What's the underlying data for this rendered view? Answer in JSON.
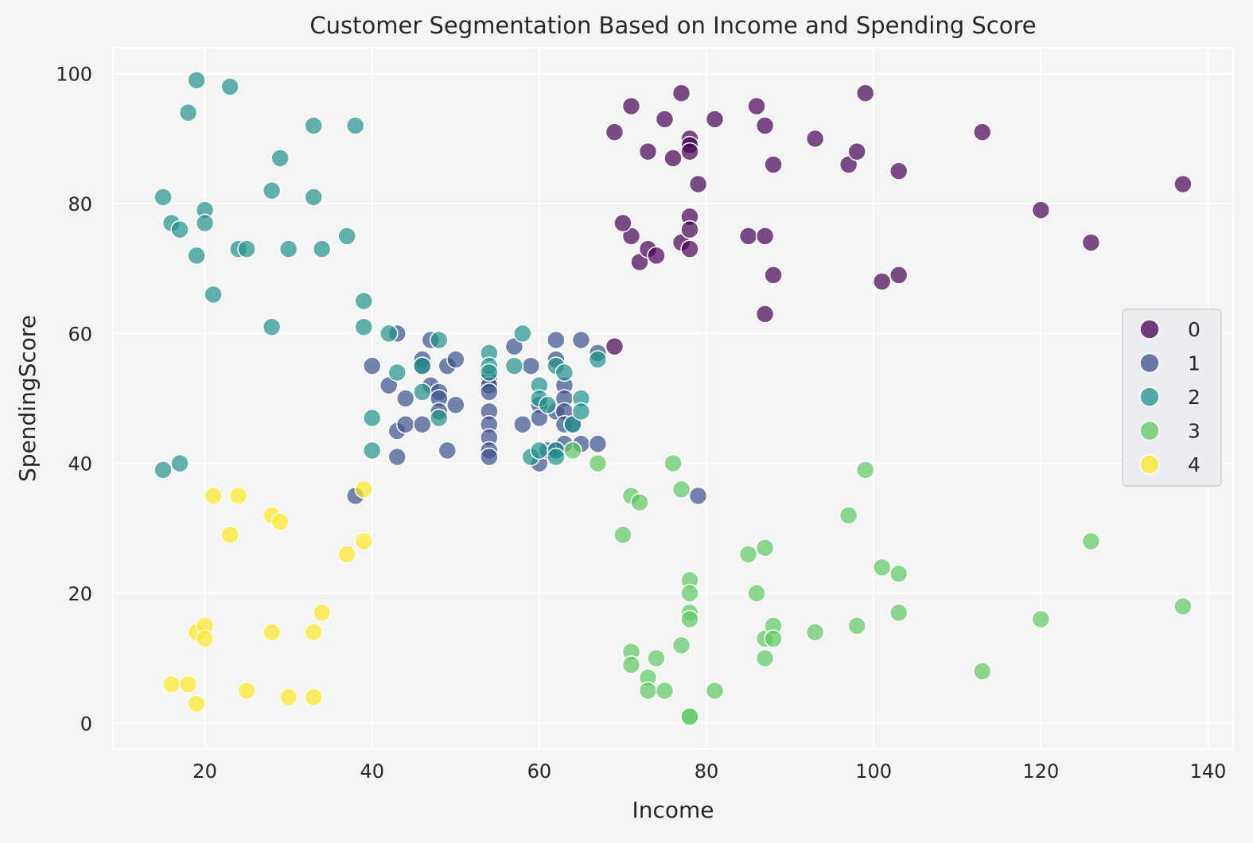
{
  "chart_data": {
    "type": "scatter",
    "title": "Customer Segmentation Based on Income and Spending Score",
    "xlabel": "Income",
    "ylabel": "SpendingScore",
    "xlim": [
      9,
      143
    ],
    "ylim": [
      -4,
      104
    ],
    "xticks": [
      20,
      40,
      60,
      80,
      100,
      120,
      140
    ],
    "yticks": [
      0,
      20,
      40,
      60,
      80,
      100
    ],
    "grid": true,
    "legend": {
      "position": "center-right",
      "entries": [
        "0",
        "1",
        "2",
        "3",
        "4"
      ]
    },
    "colors": [
      "#440154",
      "#3b528b",
      "#21918c",
      "#5ec962",
      "#fde725"
    ],
    "series": [
      {
        "name": "0",
        "points": [
          [
            69,
            91
          ],
          [
            71,
            95
          ],
          [
            71,
            75
          ],
          [
            70,
            77
          ],
          [
            72,
            71
          ],
          [
            73,
            88
          ],
          [
            73,
            73
          ],
          [
            74,
            72
          ],
          [
            75,
            93
          ],
          [
            76,
            87
          ],
          [
            77,
            97
          ],
          [
            77,
            74
          ],
          [
            78,
            90
          ],
          [
            78,
            89
          ],
          [
            78,
            88
          ],
          [
            78,
            78
          ],
          [
            78,
            76
          ],
          [
            78,
            73
          ],
          [
            79,
            83
          ],
          [
            81,
            93
          ],
          [
            85,
            75
          ],
          [
            86,
            95
          ],
          [
            87,
            92
          ],
          [
            87,
            75
          ],
          [
            87,
            63
          ],
          [
            88,
            86
          ],
          [
            88,
            69
          ],
          [
            93,
            90
          ],
          [
            97,
            86
          ],
          [
            98,
            88
          ],
          [
            99,
            97
          ],
          [
            101,
            68
          ],
          [
            103,
            85
          ],
          [
            103,
            69
          ],
          [
            113,
            91
          ],
          [
            120,
            79
          ],
          [
            126,
            74
          ],
          [
            137,
            83
          ],
          [
            69,
            58
          ]
        ]
      },
      {
        "name": "1",
        "points": [
          [
            38,
            35
          ],
          [
            40,
            55
          ],
          [
            42,
            52
          ],
          [
            43,
            60
          ],
          [
            43,
            45
          ],
          [
            43,
            41
          ],
          [
            44,
            50
          ],
          [
            44,
            46
          ],
          [
            46,
            56
          ],
          [
            46,
            55
          ],
          [
            46,
            46
          ],
          [
            47,
            59
          ],
          [
            47,
            52
          ],
          [
            48,
            51
          ],
          [
            48,
            50
          ],
          [
            48,
            48
          ],
          [
            49,
            55
          ],
          [
            49,
            42
          ],
          [
            50,
            56
          ],
          [
            50,
            49
          ],
          [
            54,
            53
          ],
          [
            54,
            52
          ],
          [
            54,
            51
          ],
          [
            54,
            48
          ],
          [
            54,
            46
          ],
          [
            54,
            44
          ],
          [
            54,
            42
          ],
          [
            54,
            41
          ],
          [
            57,
            58
          ],
          [
            58,
            46
          ],
          [
            59,
            55
          ],
          [
            60,
            49
          ],
          [
            60,
            47
          ],
          [
            60,
            40
          ],
          [
            61,
            42
          ],
          [
            62,
            59
          ],
          [
            62,
            56
          ],
          [
            62,
            48
          ],
          [
            62,
            42
          ],
          [
            63,
            52
          ],
          [
            63,
            50
          ],
          [
            63,
            48
          ],
          [
            63,
            46
          ],
          [
            63,
            43
          ],
          [
            64,
            46
          ],
          [
            65,
            59
          ],
          [
            65,
            43
          ],
          [
            67,
            57
          ],
          [
            67,
            43
          ],
          [
            79,
            35
          ]
        ]
      },
      {
        "name": "2",
        "points": [
          [
            15,
            81
          ],
          [
            15,
            39
          ],
          [
            16,
            77
          ],
          [
            17,
            76
          ],
          [
            17,
            40
          ],
          [
            18,
            94
          ],
          [
            19,
            99
          ],
          [
            19,
            72
          ],
          [
            20,
            79
          ],
          [
            20,
            77
          ],
          [
            21,
            66
          ],
          [
            23,
            98
          ],
          [
            24,
            73
          ],
          [
            25,
            73
          ],
          [
            28,
            82
          ],
          [
            28,
            61
          ],
          [
            29,
            87
          ],
          [
            30,
            73
          ],
          [
            33,
            92
          ],
          [
            33,
            81
          ],
          [
            34,
            73
          ],
          [
            37,
            75
          ],
          [
            38,
            92
          ],
          [
            39,
            65
          ],
          [
            39,
            61
          ],
          [
            40,
            47
          ],
          [
            40,
            42
          ],
          [
            42,
            60
          ],
          [
            43,
            54
          ],
          [
            46,
            55
          ],
          [
            46,
            51
          ],
          [
            48,
            59
          ],
          [
            48,
            47
          ],
          [
            54,
            57
          ],
          [
            54,
            55
          ],
          [
            54,
            54
          ],
          [
            57,
            55
          ],
          [
            58,
            60
          ],
          [
            59,
            41
          ],
          [
            60,
            52
          ],
          [
            60,
            50
          ],
          [
            60,
            42
          ],
          [
            61,
            49
          ],
          [
            62,
            55
          ],
          [
            62,
            42
          ],
          [
            62,
            41
          ],
          [
            63,
            54
          ],
          [
            64,
            46
          ],
          [
            65,
            50
          ],
          [
            65,
            48
          ],
          [
            67,
            56
          ]
        ]
      },
      {
        "name": "3",
        "points": [
          [
            64,
            42
          ],
          [
            67,
            40
          ],
          [
            70,
            29
          ],
          [
            71,
            35
          ],
          [
            71,
            11
          ],
          [
            71,
            9
          ],
          [
            72,
            34
          ],
          [
            73,
            7
          ],
          [
            73,
            5
          ],
          [
            74,
            10
          ],
          [
            75,
            5
          ],
          [
            76,
            40
          ],
          [
            77,
            36
          ],
          [
            77,
            12
          ],
          [
            78,
            22
          ],
          [
            78,
            20
          ],
          [
            78,
            17
          ],
          [
            78,
            16
          ],
          [
            78,
            1
          ],
          [
            78,
            1
          ],
          [
            81,
            5
          ],
          [
            85,
            26
          ],
          [
            86,
            20
          ],
          [
            87,
            27
          ],
          [
            87,
            13
          ],
          [
            87,
            10
          ],
          [
            88,
            15
          ],
          [
            88,
            13
          ],
          [
            93,
            14
          ],
          [
            97,
            32
          ],
          [
            98,
            15
          ],
          [
            99,
            39
          ],
          [
            101,
            24
          ],
          [
            103,
            23
          ],
          [
            103,
            17
          ],
          [
            113,
            8
          ],
          [
            120,
            16
          ],
          [
            126,
            28
          ],
          [
            137,
            18
          ]
        ]
      },
      {
        "name": "4",
        "points": [
          [
            16,
            6
          ],
          [
            18,
            6
          ],
          [
            19,
            14
          ],
          [
            19,
            3
          ],
          [
            20,
            15
          ],
          [
            20,
            13
          ],
          [
            21,
            35
          ],
          [
            23,
            29
          ],
          [
            24,
            35
          ],
          [
            25,
            5
          ],
          [
            28,
            32
          ],
          [
            28,
            14
          ],
          [
            29,
            31
          ],
          [
            30,
            4
          ],
          [
            33,
            14
          ],
          [
            33,
            4
          ],
          [
            34,
            17
          ],
          [
            37,
            26
          ],
          [
            39,
            36
          ],
          [
            39,
            28
          ]
        ]
      }
    ]
  }
}
